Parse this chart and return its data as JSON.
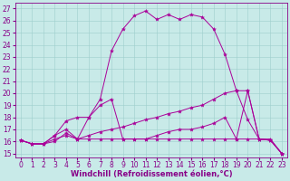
{
  "xlabel": "Windchill (Refroidissement éolien,°C)",
  "ylabel_ticks": [
    15,
    16,
    17,
    18,
    19,
    20,
    21,
    22,
    23,
    24,
    25,
    26,
    27
  ],
  "xlim": [
    -0.5,
    23.5
  ],
  "ylim": [
    14.7,
    27.5
  ],
  "bg_color": "#c8eae8",
  "grid_color": "#9dcfcc",
  "line_color": "#aa0099",
  "curve1_x": [
    0,
    1,
    2,
    3,
    4,
    5,
    6,
    7,
    8,
    9,
    10,
    11,
    12,
    13,
    14,
    15,
    16,
    17,
    18,
    19,
    20,
    21,
    22,
    23
  ],
  "curve1_y": [
    16.1,
    15.8,
    15.8,
    16.0,
    16.7,
    16.2,
    16.2,
    16.2,
    16.2,
    16.2,
    16.2,
    16.2,
    16.2,
    16.2,
    16.2,
    16.2,
    16.2,
    16.2,
    16.2,
    16.2,
    16.2,
    16.2,
    16.2,
    15.0
  ],
  "curve2_x": [
    0,
    1,
    2,
    3,
    4,
    5,
    6,
    7,
    8,
    9,
    10,
    11,
    12,
    13,
    14,
    15,
    16,
    17,
    18,
    19,
    20,
    21,
    22,
    23
  ],
  "curve2_y": [
    16.1,
    15.8,
    15.8,
    16.2,
    16.5,
    16.2,
    16.5,
    16.8,
    17.0,
    17.2,
    17.5,
    17.8,
    18.0,
    18.3,
    18.5,
    18.8,
    19.0,
    19.5,
    20.0,
    20.2,
    17.8,
    16.2,
    16.1,
    15.0
  ],
  "curve3_x": [
    0,
    1,
    2,
    3,
    4,
    5,
    6,
    7,
    8,
    9,
    10,
    11,
    12,
    13,
    14,
    15,
    16,
    17,
    18,
    19,
    20,
    21,
    22,
    23
  ],
  "curve3_y": [
    16.1,
    15.8,
    15.8,
    16.5,
    17.7,
    18.0,
    18.0,
    19.0,
    19.5,
    16.2,
    16.2,
    16.2,
    16.5,
    16.8,
    17.0,
    17.0,
    17.2,
    17.5,
    18.0,
    16.2,
    20.2,
    16.2,
    16.1,
    15.0
  ],
  "curve4_x": [
    0,
    1,
    2,
    3,
    4,
    5,
    6,
    7,
    8,
    9,
    10,
    11,
    12,
    13,
    14,
    15,
    16,
    17,
    18,
    19,
    20,
    21,
    22,
    23
  ],
  "curve4_y": [
    16.1,
    15.8,
    15.8,
    16.5,
    17.0,
    16.2,
    18.0,
    19.5,
    23.5,
    25.3,
    26.4,
    26.8,
    26.1,
    26.5,
    26.1,
    26.5,
    26.3,
    25.3,
    23.2,
    20.2,
    20.2,
    16.2,
    16.1,
    15.0
  ],
  "marker": "*",
  "marker_size": 3,
  "font_color": "#880088",
  "tick_fontsize": 5.5,
  "xlabel_fontsize": 6.0
}
